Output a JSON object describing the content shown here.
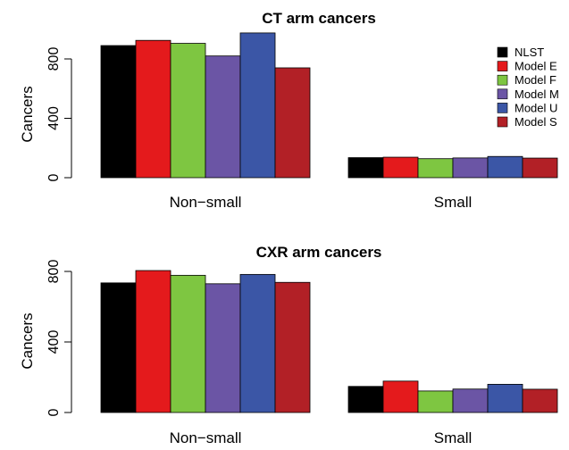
{
  "chart_data": [
    {
      "type": "bar",
      "title": "CT arm cancers",
      "xlabel": "",
      "ylabel": "Cancers",
      "ylim": [
        0,
        1000
      ],
      "yticks": [
        0,
        400,
        800
      ],
      "categories": [
        "Non−small",
        "Small"
      ],
      "series": [
        {
          "name": "NLST",
          "color": "#000000",
          "values": [
            890,
            135
          ]
        },
        {
          "name": "Model E",
          "color": "#e41a1c",
          "values": [
            925,
            138
          ]
        },
        {
          "name": "Model F",
          "color": "#7ec641",
          "values": [
            905,
            128
          ]
        },
        {
          "name": "Model M",
          "color": "#6b55a5",
          "values": [
            820,
            133
          ]
        },
        {
          "name": "Model U",
          "color": "#3b56a6",
          "values": [
            975,
            143
          ]
        },
        {
          "name": "Model S",
          "color": "#b22026",
          "values": [
            740,
            132
          ]
        }
      ],
      "legend": "right"
    },
    {
      "type": "bar",
      "title": "CXR arm cancers",
      "xlabel": "",
      "ylabel": "Cancers",
      "ylim": [
        0,
        850
      ],
      "yticks": [
        0,
        400,
        800
      ],
      "categories": [
        "Non−small",
        "Small"
      ],
      "series": [
        {
          "name": "NLST",
          "color": "#000000",
          "values": [
            735,
            148
          ]
        },
        {
          "name": "Model E",
          "color": "#e41a1c",
          "values": [
            805,
            178
          ]
        },
        {
          "name": "Model F",
          "color": "#7ec641",
          "values": [
            778,
            122
          ]
        },
        {
          "name": "Model M",
          "color": "#6b55a5",
          "values": [
            730,
            133
          ]
        },
        {
          "name": "Model U",
          "color": "#3b56a6",
          "values": [
            783,
            160
          ]
        },
        {
          "name": "Model S",
          "color": "#b22026",
          "values": [
            738,
            132
          ]
        }
      ]
    }
  ]
}
